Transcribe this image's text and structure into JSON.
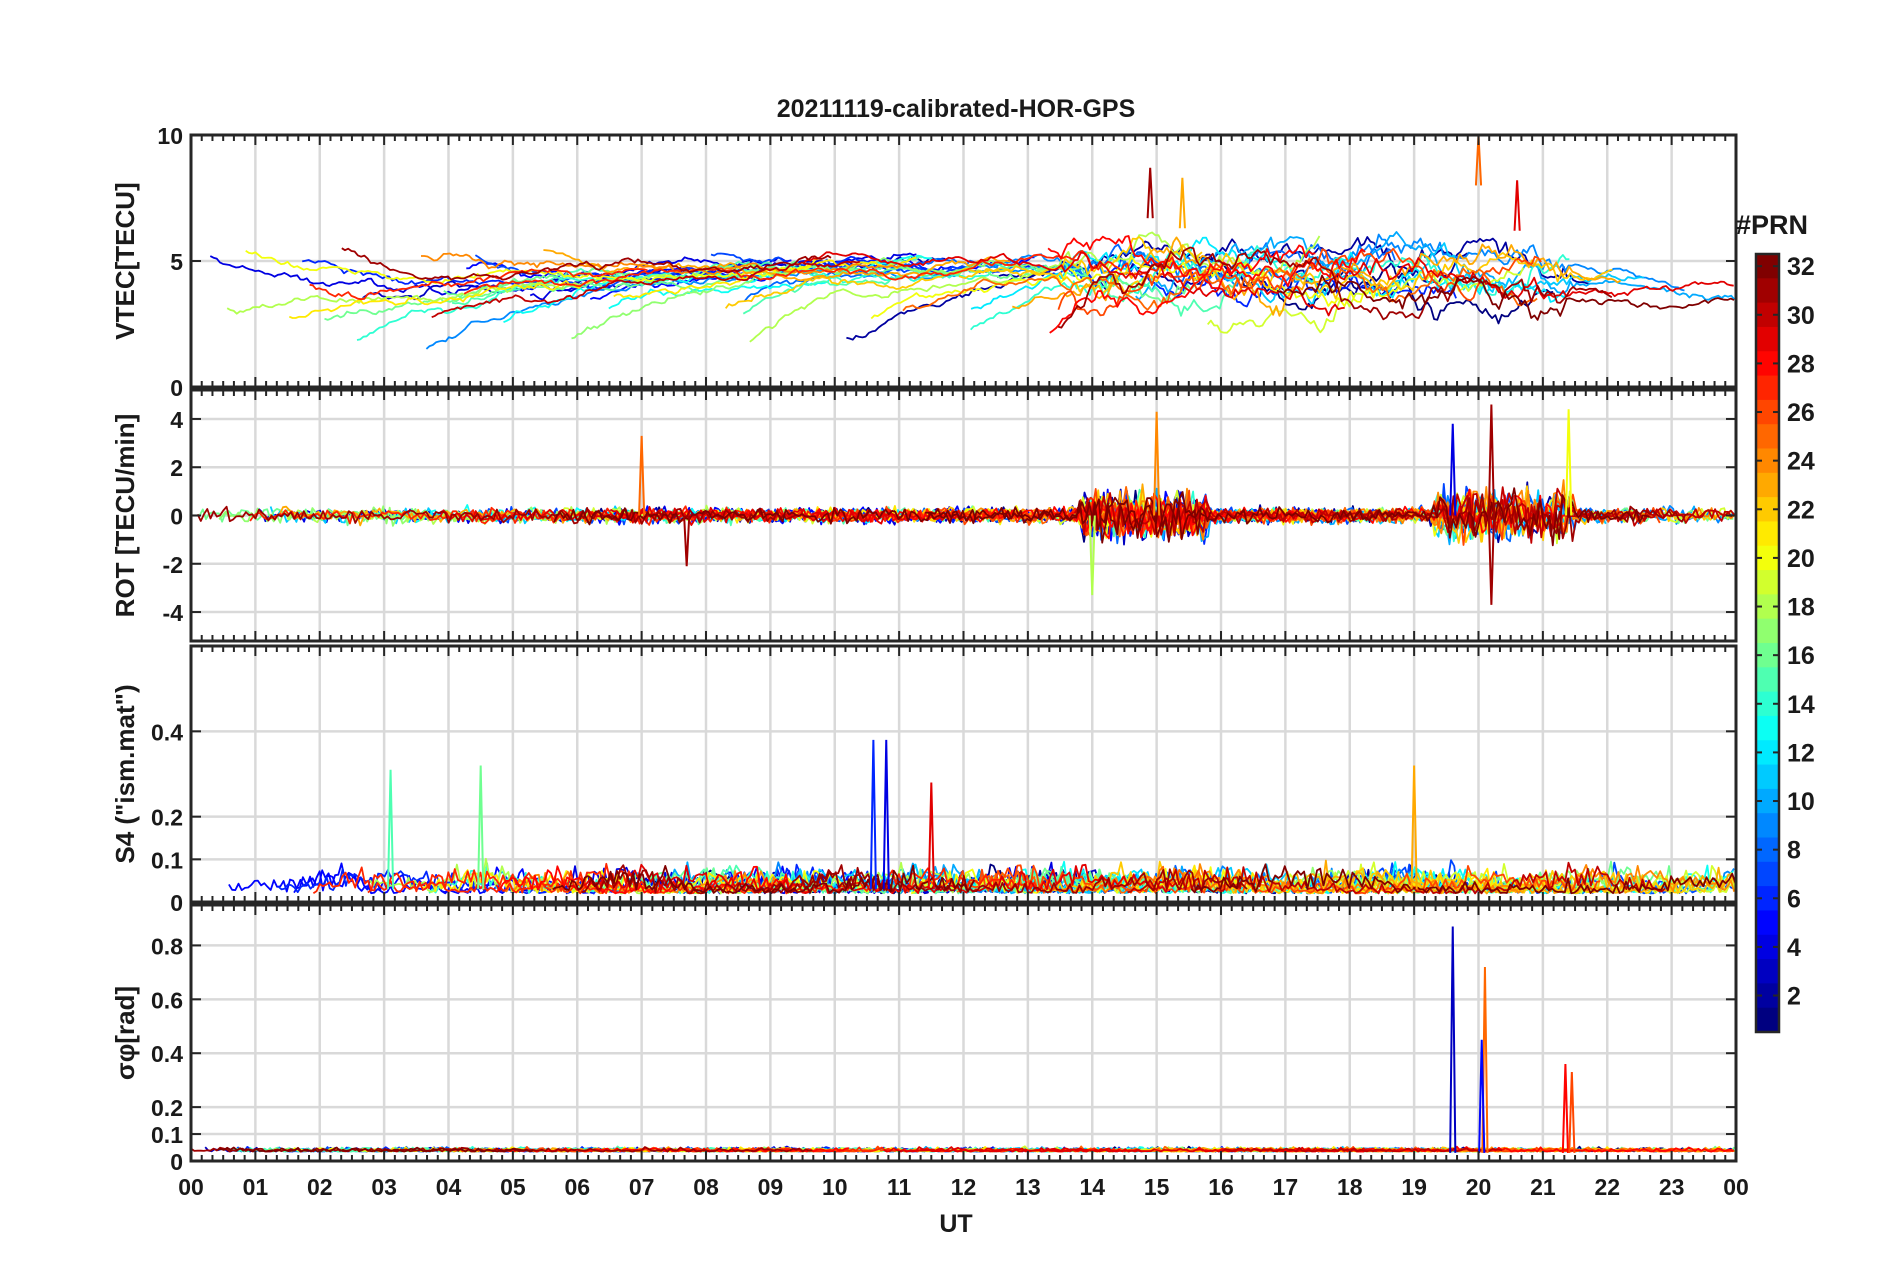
{
  "figure": {
    "title": "20211119-calibrated-HOR-GPS",
    "xlabel": "UT",
    "x_ticks": [
      "00",
      "01",
      "02",
      "03",
      "04",
      "05",
      "06",
      "07",
      "08",
      "09",
      "10",
      "11",
      "12",
      "13",
      "14",
      "15",
      "16",
      "17",
      "18",
      "19",
      "20",
      "21",
      "22",
      "23",
      "00"
    ]
  },
  "colorbar": {
    "title": "#PRN",
    "range": [
      1,
      32
    ],
    "ticks": [
      "2",
      "4",
      "6",
      "8",
      "10",
      "12",
      "14",
      "16",
      "18",
      "20",
      "22",
      "24",
      "26",
      "28",
      "30",
      "32"
    ],
    "tick_values": [
      2,
      4,
      6,
      8,
      10,
      12,
      14,
      16,
      18,
      20,
      22,
      24,
      26,
      28,
      30,
      32
    ],
    "colormap": "jet"
  },
  "chart_data": [
    {
      "type": "line",
      "panel": "vtec",
      "ylabel": "VTEC[TECU]",
      "ylim": [
        0,
        10
      ],
      "yticks": [
        "0",
        "5",
        "10"
      ],
      "ytick_values": [
        0,
        5,
        10
      ],
      "xlim": [
        0,
        24
      ],
      "series_count": 32,
      "typical_range": [
        1,
        8.7
      ],
      "notable_peaks": [
        {
          "x": 14.9,
          "y": 8.7,
          "prn": 31
        },
        {
          "x": 15.4,
          "y": 8.3,
          "prn": 23
        },
        {
          "x": 20.0,
          "y": 10,
          "prn": 25
        },
        {
          "x": 20.6,
          "y": 8.2,
          "prn": 29
        }
      ]
    },
    {
      "type": "line",
      "panel": "rot",
      "ylabel": "ROT [TECU/min]",
      "ylim": [
        -5.2,
        5.2
      ],
      "yticks": [
        "-4",
        "-2",
        "0",
        "2",
        "4"
      ],
      "ytick_values": [
        -4,
        -2,
        0,
        2,
        4
      ],
      "xlim": [
        0,
        24
      ],
      "series_count": 32,
      "notable_peaks": [
        {
          "x": 7.0,
          "y": 3.3,
          "prn": 25
        },
        {
          "x": 7.7,
          "y": -2.1,
          "prn": 31
        },
        {
          "x": 15.0,
          "y": 4.3,
          "prn": 24
        },
        {
          "x": 14.0,
          "y": -3.3,
          "prn": 18
        },
        {
          "x": 19.6,
          "y": 3.8,
          "prn": 4
        },
        {
          "x": 20.2,
          "y": 4.6,
          "prn": 31
        },
        {
          "x": 20.2,
          "y": -3.7,
          "prn": 31
        },
        {
          "x": 21.4,
          "y": 4.4,
          "prn": 20
        }
      ]
    },
    {
      "type": "line",
      "panel": "s4",
      "ylabel": "S4 (\"ism.mat\")",
      "ylim": [
        0,
        0.6
      ],
      "yticks": [
        "0",
        "0.1",
        "0.2",
        "0.4"
      ],
      "ytick_values": [
        0,
        0.1,
        0.2,
        0.4
      ],
      "xlim": [
        0,
        24
      ],
      "series_count": 32,
      "notable_peaks": [
        {
          "x": 10.6,
          "y": 0.38,
          "prn": 6
        },
        {
          "x": 10.8,
          "y": 0.38,
          "prn": 4
        },
        {
          "x": 19.0,
          "y": 0.32,
          "prn": 23
        },
        {
          "x": 4.5,
          "y": 0.32,
          "prn": 16
        },
        {
          "x": 3.1,
          "y": 0.31,
          "prn": 15
        },
        {
          "x": 11.5,
          "y": 0.28,
          "prn": 29
        }
      ]
    },
    {
      "type": "line",
      "panel": "sigma_phi",
      "ylabel": "σφ[rad]",
      "ylim": [
        0,
        0.95
      ],
      "yticks": [
        "0",
        "0.1",
        "0.2",
        "0.4",
        "0.6",
        "0.8"
      ],
      "ytick_values": [
        0,
        0.1,
        0.2,
        0.4,
        0.6,
        0.8
      ],
      "xlim": [
        0,
        24
      ],
      "series_count": 32,
      "notable_peaks": [
        {
          "x": 19.6,
          "y": 0.87,
          "prn": 3
        },
        {
          "x": 20.1,
          "y": 0.72,
          "prn": 25
        },
        {
          "x": 20.05,
          "y": 0.45,
          "prn": 5
        },
        {
          "x": 21.35,
          "y": 0.36,
          "prn": 28
        },
        {
          "x": 21.45,
          "y": 0.33,
          "prn": 26
        }
      ]
    }
  ]
}
